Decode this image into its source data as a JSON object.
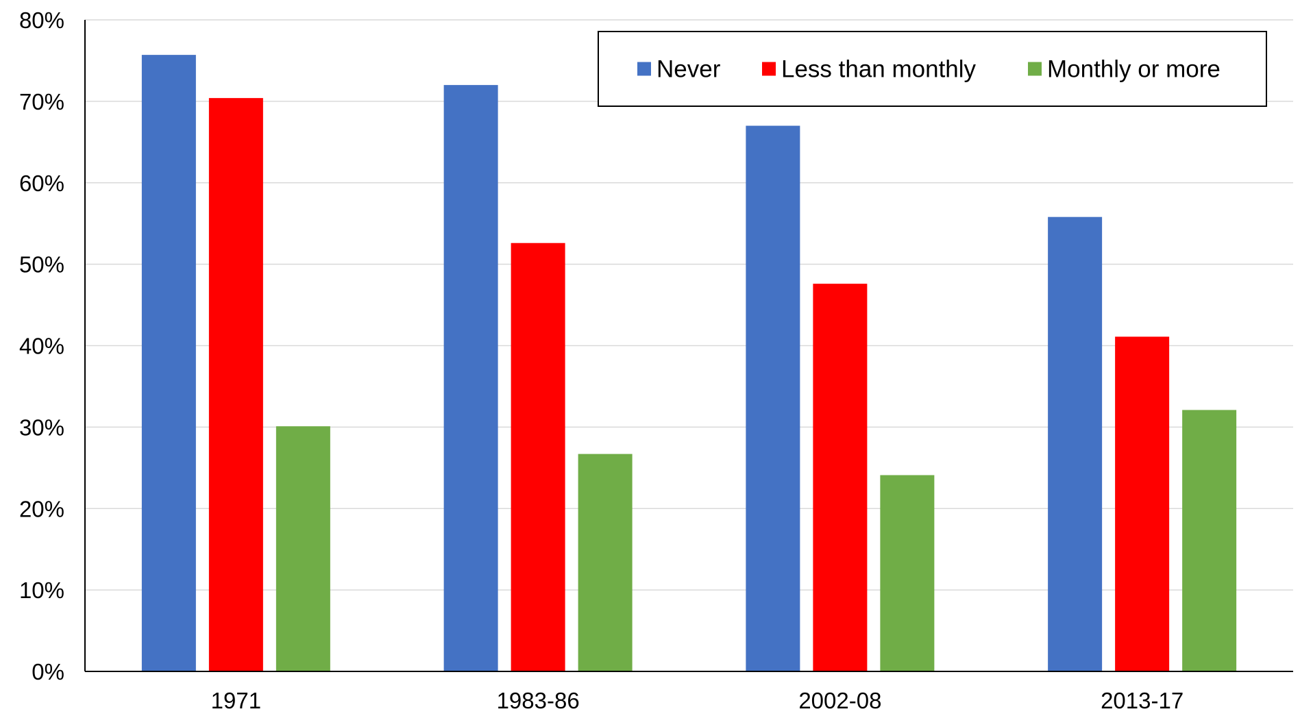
{
  "chart_data": {
    "type": "bar",
    "categories": [
      "1971",
      "1983-86",
      "2002-08",
      "2013-17"
    ],
    "series": [
      {
        "name": "Never",
        "color": "#4472C4",
        "values": [
          75.7,
          72.0,
          67.0,
          55.8
        ]
      },
      {
        "name": "Less than monthly",
        "color": "#FF0000",
        "values": [
          70.4,
          52.6,
          47.6,
          41.1
        ]
      },
      {
        "name": "Monthly or more",
        "color": "#70AD47",
        "values": [
          30.1,
          26.7,
          24.1,
          32.1
        ]
      }
    ],
    "ylim": [
      0,
      80
    ],
    "yticks": [
      0,
      10,
      20,
      30,
      40,
      50,
      60,
      70,
      80
    ],
    "ytick_labels": [
      "0%",
      "10%",
      "20%",
      "30%",
      "40%",
      "50%",
      "60%",
      "70%",
      "80%"
    ],
    "grid": true,
    "legend_position": "top-right",
    "title": "",
    "xlabel": "",
    "ylabel": ""
  }
}
